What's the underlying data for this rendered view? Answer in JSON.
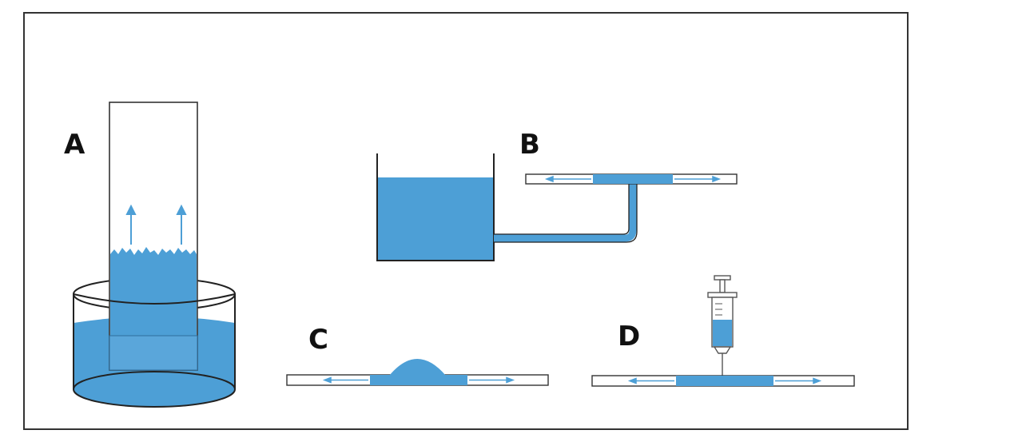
{
  "figure": {
    "labels": {
      "a": "A",
      "b": "B",
      "c": "C",
      "d": "D"
    }
  },
  "colors": {
    "liquid": "#4d9fd6",
    "outline": "#2b2b2b",
    "strip_fill": "#ffffff",
    "frame": "#333333"
  },
  "icons": [
    "upward-arrow-icon",
    "syringe-icon",
    "flow-arrow-icon"
  ]
}
